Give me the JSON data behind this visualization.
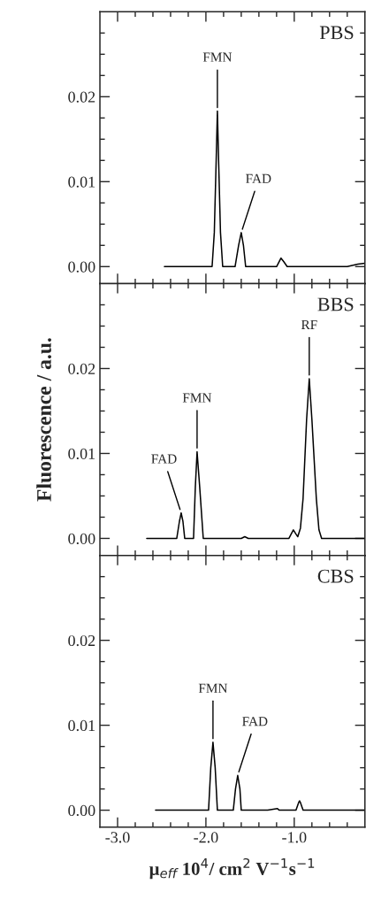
{
  "chart_data": [
    {
      "type": "line",
      "xlim": [
        -3.2,
        -0.2
      ],
      "ylim": [
        -0.002,
        0.03
      ],
      "tick_labels": "y",
      "xticks": [
        {
          "value": -3.0,
          "label": null
        },
        {
          "value": -2.8,
          "label": null
        },
        {
          "value": -2.6,
          "label": null
        },
        {
          "value": -2.4,
          "label": null
        },
        {
          "value": -2.2,
          "label": null
        },
        {
          "value": -2.0,
          "label": null
        },
        {
          "value": -1.8,
          "label": null
        },
        {
          "value": -1.6,
          "label": null
        },
        {
          "value": -1.4,
          "label": null
        },
        {
          "value": -1.2,
          "label": null
        },
        {
          "value": -1.0,
          "label": null
        },
        {
          "value": -0.8,
          "label": null
        },
        {
          "value": -0.6,
          "label": null
        },
        {
          "value": -0.4,
          "label": null
        }
      ],
      "yticks": [
        {
          "value": 0.0,
          "label": "0.00"
        },
        {
          "value": 0.0025,
          "label": null
        },
        {
          "value": 0.005,
          "label": null
        },
        {
          "value": 0.0075,
          "label": null
        },
        {
          "value": 0.01,
          "label": "0.01"
        },
        {
          "value": 0.0125,
          "label": null
        },
        {
          "value": 0.015,
          "label": null
        },
        {
          "value": 0.0175,
          "label": null
        },
        {
          "value": 0.02,
          "label": "0.02"
        },
        {
          "value": 0.0225,
          "label": null
        },
        {
          "value": 0.025,
          "label": null
        },
        {
          "value": 0.0275,
          "label": null
        }
      ],
      "series": [
        {
          "color": "#000000",
          "x": [
            -2.47,
            -2.2,
            -2.0,
            -1.93,
            -1.905,
            -1.885,
            -1.87,
            -1.855,
            -1.835,
            -1.81,
            -1.73,
            -1.67,
            -1.63,
            -1.6,
            -1.575,
            -1.55,
            -1.3,
            -1.2,
            -1.16,
            -1.15,
            -1.12,
            -1.08,
            -0.6,
            -0.4,
            -0.28,
            -0.2
          ],
          "values": [
            0.0,
            0.0,
            0.0,
            0.0,
            0.004,
            0.012,
            0.0183,
            0.012,
            0.004,
            0.0,
            0.0,
            0.0,
            0.0025,
            0.004,
            0.0025,
            0.0,
            0.0,
            0.0,
            0.0008,
            0.001,
            0.0006,
            0.0,
            0.0,
            0.0,
            0.0003,
            0.0004
          ]
        }
      ],
      "annotations": [
        "PBS",
        {
          "text": "FMN",
          "x": -1.87,
          "y": 0.0183
        },
        {
          "text": "FAD",
          "x": -1.6,
          "y": 0.004
        }
      ]
    },
    {
      "type": "line",
      "xlim": [
        -3.2,
        -0.2
      ],
      "ylim": [
        -0.002,
        0.03
      ],
      "tick_labels": "y",
      "xticks": [
        {
          "value": -3.0,
          "label": null
        },
        {
          "value": -2.8,
          "label": null
        },
        {
          "value": -2.6,
          "label": null
        },
        {
          "value": -2.4,
          "label": null
        },
        {
          "value": -2.2,
          "label": null
        },
        {
          "value": -2.0,
          "label": null
        },
        {
          "value": -1.8,
          "label": null
        },
        {
          "value": -1.6,
          "label": null
        },
        {
          "value": -1.4,
          "label": null
        },
        {
          "value": -1.2,
          "label": null
        },
        {
          "value": -1.0,
          "label": null
        },
        {
          "value": -0.8,
          "label": null
        },
        {
          "value": -0.6,
          "label": null
        },
        {
          "value": -0.4,
          "label": null
        }
      ],
      "yticks": [
        {
          "value": 0.0,
          "label": "0.00"
        },
        {
          "value": 0.0025,
          "label": null
        },
        {
          "value": 0.005,
          "label": null
        },
        {
          "value": 0.0075,
          "label": null
        },
        {
          "value": 0.01,
          "label": "0.01"
        },
        {
          "value": 0.0125,
          "label": null
        },
        {
          "value": 0.015,
          "label": null
        },
        {
          "value": 0.0175,
          "label": null
        },
        {
          "value": 0.02,
          "label": "0.02"
        },
        {
          "value": 0.0225,
          "label": null
        },
        {
          "value": 0.025,
          "label": null
        },
        {
          "value": 0.0275,
          "label": null
        }
      ],
      "ylabel": "Fluorescence / a.u.",
      "series": [
        {
          "color": "#000000",
          "x": [
            -2.67,
            -2.4,
            -2.33,
            -2.3,
            -2.28,
            -2.26,
            -2.24,
            -2.14,
            -2.12,
            -2.1,
            -2.07,
            -2.03,
            -1.8,
            -1.6,
            -1.56,
            -1.52,
            -1.2,
            -1.06,
            -1.03,
            -1.01,
            -0.98,
            -0.96,
            -0.93,
            -0.9,
            -0.86,
            -0.83,
            -0.8,
            -0.75,
            -0.72,
            -0.69,
            -0.5,
            -0.2
          ],
          "values": [
            0.0,
            0.0,
            0.0,
            0.002,
            0.003,
            0.002,
            0.0,
            0.0,
            0.006,
            0.0102,
            0.006,
            0.0,
            0.0,
            0.0,
            0.0002,
            0.0,
            0.0,
            0.0,
            0.0006,
            0.001,
            0.0005,
            0.0002,
            0.0012,
            0.0047,
            0.014,
            0.0188,
            0.014,
            0.0047,
            0.001,
            0.0,
            0.0,
            0.0
          ]
        }
      ],
      "annotations": [
        "BBS",
        {
          "text": "FAD",
          "x": -2.28,
          "y": 0.003
        },
        {
          "text": "FMN",
          "x": -2.1,
          "y": 0.0102
        },
        {
          "text": "RF",
          "x": -0.83,
          "y": 0.0188
        }
      ]
    },
    {
      "type": "line",
      "xlim": [
        -3.2,
        -0.2
      ],
      "ylim": [
        -0.002,
        0.03
      ],
      "xticks": [
        {
          "value": -3.0,
          "label": "-3.0"
        },
        {
          "value": -2.8,
          "label": null
        },
        {
          "value": -2.6,
          "label": null
        },
        {
          "value": -2.4,
          "label": null
        },
        {
          "value": -2.2,
          "label": null
        },
        {
          "value": -2.0,
          "label": "-2.0"
        },
        {
          "value": -1.8,
          "label": null
        },
        {
          "value": -1.6,
          "label": null
        },
        {
          "value": -1.4,
          "label": null
        },
        {
          "value": -1.2,
          "label": null
        },
        {
          "value": -1.0,
          "label": "-1.0"
        },
        {
          "value": -0.8,
          "label": null
        },
        {
          "value": -0.6,
          "label": null
        },
        {
          "value": -0.4,
          "label": null
        }
      ],
      "yticks": [
        {
          "value": 0.0,
          "label": "0.00"
        },
        {
          "value": 0.0025,
          "label": null
        },
        {
          "value": 0.005,
          "label": null
        },
        {
          "value": 0.0075,
          "label": null
        },
        {
          "value": 0.01,
          "label": "0.01"
        },
        {
          "value": 0.0125,
          "label": null
        },
        {
          "value": 0.015,
          "label": null
        },
        {
          "value": 0.0175,
          "label": null
        },
        {
          "value": 0.02,
          "label": "0.02"
        },
        {
          "value": 0.0225,
          "label": null
        },
        {
          "value": 0.025,
          "label": null
        },
        {
          "value": 0.0275,
          "label": null
        }
      ],
      "xlabel": "μ$_{eff}$ 10$^{4}$/ cm$^{2}$ V$^{−1}$s$^{−1}$",
      "series": [
        {
          "color": "#000000",
          "x": [
            -2.57,
            -2.2,
            -1.97,
            -1.945,
            -1.92,
            -1.895,
            -1.87,
            -1.69,
            -1.665,
            -1.64,
            -1.615,
            -1.6,
            -1.3,
            -1.19,
            -1.17,
            -0.98,
            -0.95,
            -0.94,
            -0.93,
            -0.9,
            -0.6,
            -0.2
          ],
          "values": [
            0.0,
            0.0,
            0.0,
            0.005,
            0.008,
            0.005,
            0.0,
            0.0,
            0.0025,
            0.0041,
            0.0025,
            0.0,
            0.0,
            0.0002,
            0.0,
            0.0,
            0.0009,
            0.0011,
            0.0009,
            0.0,
            0.0,
            0.0
          ]
        }
      ],
      "annotations": [
        "CBS",
        {
          "text": "FMN",
          "x": -1.92,
          "y": 0.008
        },
        {
          "text": "FAD",
          "x": -1.64,
          "y": 0.0041
        }
      ]
    }
  ]
}
